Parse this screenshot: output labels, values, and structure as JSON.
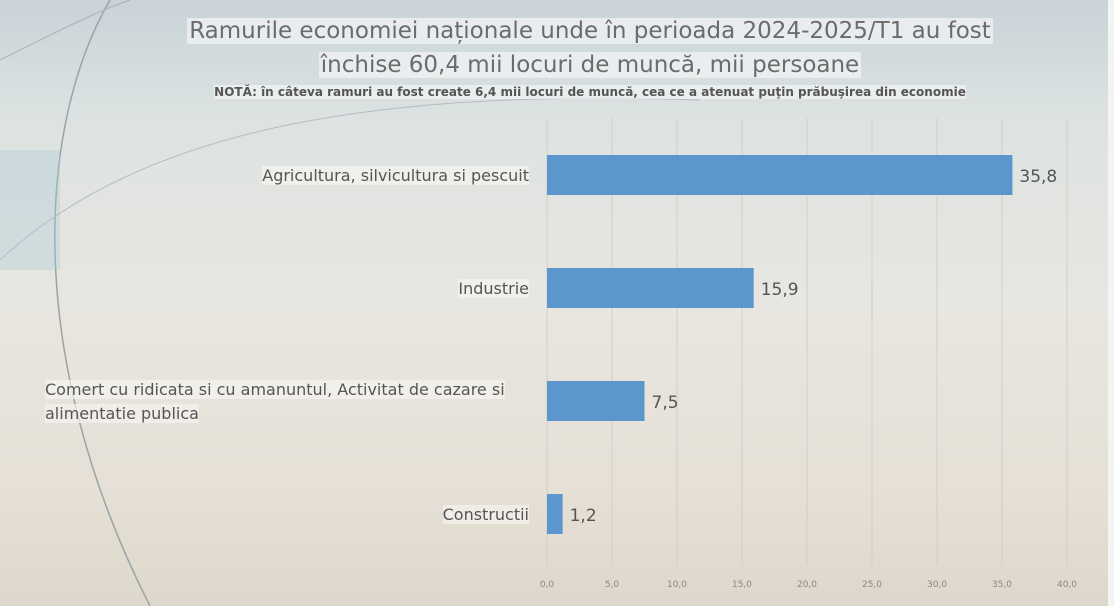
{
  "chart_data": {
    "type": "bar",
    "orientation": "horizontal",
    "title_line1": "Ramurile economiei naționale unde în perioada 2024-2025/T1 au fost",
    "title_line2": "închise 60,4 mii locuri de muncă, mii persoane",
    "note": "NOTĂ: în câteva ramuri au fost create 6,4 mii locuri de muncă, cea ce a atenuat puţin prăbuşirea din economie",
    "categories": [
      "Agricultura, silvicultura si pescuit",
      "Industrie",
      "Comert cu ridicata si cu amanuntul, Activitat de cazare si alimentatie publica",
      "Constructii"
    ],
    "values": [
      35.8,
      15.9,
      7.5,
      1.2
    ],
    "value_labels": [
      "35,8",
      "15,9",
      "7,5",
      "1,2"
    ],
    "xlim": [
      0,
      40
    ],
    "xticks": [
      "0,0",
      "5,0",
      "10,0",
      "15,0",
      "20,0",
      "25,0",
      "30,0",
      "35,0",
      "40,0"
    ],
    "grid": true,
    "bar_color": "#5b96cc"
  }
}
